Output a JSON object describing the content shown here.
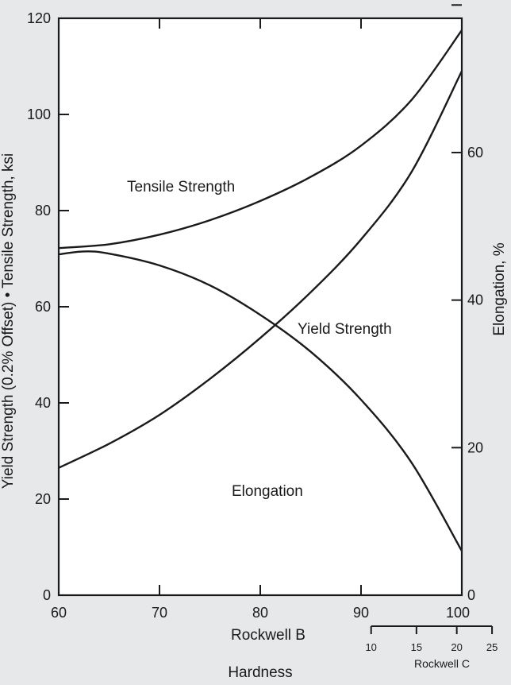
{
  "chart_data": {
    "type": "line",
    "x_axis": {
      "label": "Rockwell B",
      "range": [
        60,
        100
      ],
      "ticks": [
        60,
        70,
        80,
        90,
        100
      ]
    },
    "secondary_x_axis": {
      "label": "Rockwell C",
      "ticks": [
        10,
        15,
        20,
        25
      ],
      "rockwell_b_equivalent": [
        91,
        95.5,
        99.5,
        103
      ]
    },
    "x_group_label": "Hardness",
    "y_left_axis": {
      "label": "Yield Strength (0.2% Offset) • Tensile Strength, ksi",
      "range": [
        0,
        120
      ],
      "ticks": [
        0,
        20,
        40,
        60,
        80,
        100,
        120
      ]
    },
    "y_right_axis": {
      "label": "Elongation, %",
      "range": [
        0,
        78.2
      ],
      "ticks": [
        0,
        20,
        40,
        60
      ],
      "unlabeled_ticks": [
        80
      ]
    },
    "series": [
      {
        "name": "Tensile Strength",
        "axis": "left",
        "x": [
          60,
          65,
          70,
          75,
          80,
          85,
          90,
          95,
          100
        ],
        "y": [
          72.2,
          73,
          75,
          78,
          82,
          87,
          93.5,
          103,
          117.5
        ]
      },
      {
        "name": "Yield Strength",
        "axis": "left",
        "x": [
          60,
          65,
          70,
          75,
          80,
          85,
          90,
          95,
          100
        ],
        "y": [
          26.5,
          31.5,
          37.5,
          45,
          53.5,
          63,
          74,
          88,
          109
        ]
      },
      {
        "name": "Elongation",
        "axis": "right",
        "x": [
          60,
          62.5,
          65,
          70,
          75,
          80,
          85,
          90,
          95,
          100
        ],
        "y": [
          46.2,
          46.6,
          46.3,
          44.7,
          42,
          38,
          33,
          26.5,
          18,
          6
        ]
      }
    ],
    "annotations": [
      {
        "text": "Tensile Strength",
        "series": "Tensile Strength"
      },
      {
        "text": "Yield Strength",
        "series": "Yield Strength"
      },
      {
        "text": "Elongation",
        "series": "Elongation"
      }
    ],
    "grid": false,
    "legend": "none"
  }
}
